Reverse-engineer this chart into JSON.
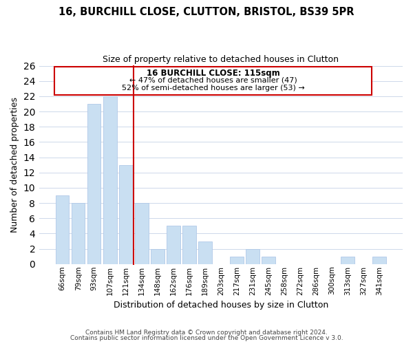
{
  "title1": "16, BURCHILL CLOSE, CLUTTON, BRISTOL, BS39 5PR",
  "title2": "Size of property relative to detached houses in Clutton",
  "xlabel": "Distribution of detached houses by size in Clutton",
  "ylabel": "Number of detached properties",
  "bar_labels": [
    "66sqm",
    "79sqm",
    "93sqm",
    "107sqm",
    "121sqm",
    "134sqm",
    "148sqm",
    "162sqm",
    "176sqm",
    "189sqm",
    "203sqm",
    "217sqm",
    "231sqm",
    "245sqm",
    "258sqm",
    "272sqm",
    "286sqm",
    "300sqm",
    "313sqm",
    "327sqm",
    "341sqm"
  ],
  "bar_values": [
    9,
    8,
    21,
    22,
    13,
    8,
    2,
    5,
    5,
    3,
    0,
    1,
    2,
    1,
    0,
    0,
    0,
    0,
    1,
    0,
    1
  ],
  "bar_color": "#c9dff2",
  "bar_edge_color": "#b0c8e8",
  "ylim": [
    0,
    26
  ],
  "yticks": [
    0,
    2,
    4,
    6,
    8,
    10,
    12,
    14,
    16,
    18,
    20,
    22,
    24,
    26
  ],
  "annotation_title": "16 BURCHILL CLOSE: 115sqm",
  "annotation_line1": "← 47% of detached houses are smaller (47)",
  "annotation_line2": "52% of semi-detached houses are larger (53) →",
  "annotation_box_color": "#ffffff",
  "annotation_box_edge": "#cc0000",
  "vline_x": 4.5,
  "footer1": "Contains HM Land Registry data © Crown copyright and database right 2024.",
  "footer2": "Contains public sector information licensed under the Open Government Licence v 3.0.",
  "background_color": "#ffffff",
  "grid_color": "#cdd8ea"
}
